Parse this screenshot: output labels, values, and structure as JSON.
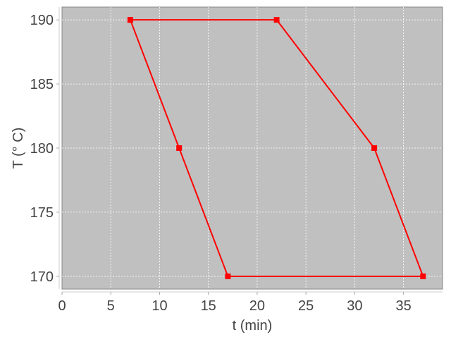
{
  "chart_data": {
    "type": "line",
    "title": "",
    "xlabel": "t (min)",
    "ylabel": "T (° C)",
    "xlim": [
      0,
      39
    ],
    "ylim": [
      169,
      191
    ],
    "xticks": [
      0,
      5,
      10,
      15,
      20,
      25,
      30,
      35
    ],
    "yticks": [
      170,
      175,
      180,
      185,
      190
    ],
    "grid": true,
    "background_color": "#c0c0c0",
    "series": [
      {
        "color": "#ff0000",
        "marker": "square",
        "x": [
          7,
          22,
          32,
          37,
          17,
          12,
          7
        ],
        "y": [
          190,
          190,
          180,
          170,
          170,
          180,
          190
        ]
      }
    ]
  }
}
